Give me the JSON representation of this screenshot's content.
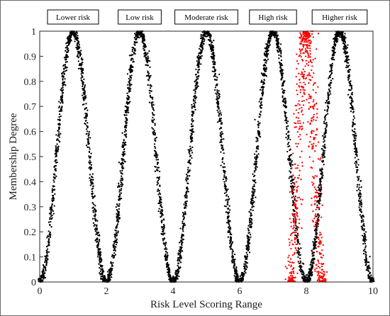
{
  "chart_data": {
    "type": "scatter",
    "xlabel": "Risk Level Scoring Range",
    "ylabel": "Membership Degree",
    "xlim": [
      0,
      10
    ],
    "ylim": [
      0,
      1
    ],
    "xticks": [
      "0",
      "2",
      "4",
      "6",
      "8",
      "10"
    ],
    "yticks": [
      "0",
      "0.1",
      "0.2",
      "0.3",
      "0.4",
      "0.5",
      "0.6",
      "0.7",
      "0.8",
      "0.9",
      "1"
    ],
    "grid": false,
    "series": [
      {
        "name": "Lower risk",
        "color": "#000000",
        "peak_x": 1,
        "support": [
          0,
          2
        ],
        "peak_y": 1
      },
      {
        "name": "Low risk",
        "color": "#000000",
        "peak_x": 3,
        "support": [
          2,
          4
        ],
        "peak_y": 1
      },
      {
        "name": "Moderate risk",
        "color": "#000000",
        "peak_x": 5,
        "support": [
          4,
          6
        ],
        "peak_y": 1
      },
      {
        "name": "High risk",
        "color": "#000000",
        "peak_x": 7,
        "support": [
          6,
          8
        ],
        "peak_y": 1
      },
      {
        "name": "",
        "color": "#ff0000",
        "peak_x": 8,
        "support": [
          7.5,
          8.5
        ],
        "peak_y": 1
      },
      {
        "name": "Higher risk",
        "color": "#000000",
        "peak_x": 9,
        "support": [
          8,
          10
        ],
        "peak_y": 1
      }
    ]
  }
}
